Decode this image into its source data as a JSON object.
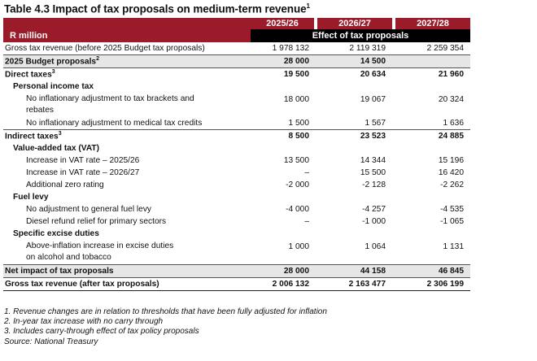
{
  "title": "Table 4.3 Impact of tax proposals on medium-term revenue",
  "title_sup": "1",
  "header": {
    "years": [
      "2025/26",
      "2026/27",
      "2027/28"
    ],
    "unit": "R million",
    "band": "Effect of tax proposals"
  },
  "rows": [
    {
      "label": "Gross tax revenue (before 2025 Budget tax proposals)",
      "v": [
        "1 978 132",
        "2 119 319",
        "2 259 354"
      ]
    },
    {
      "label": "2025 Budget proposals",
      "sup": "2",
      "v": [
        "28 000",
        "14 500",
        ""
      ]
    },
    {
      "label": "Direct taxes",
      "sup": "3",
      "v": [
        "19 500",
        "20 634",
        "21 960"
      ]
    },
    {
      "label": "Personal income tax",
      "v": [
        "",
        "",
        ""
      ]
    },
    {
      "label": "No inflationary adjustment to tax brackets and",
      "label2": "rebates",
      "v": [
        "18 000",
        "19 067",
        "20 324"
      ]
    },
    {
      "label": "No inflationary adjustment to medical tax credits",
      "v": [
        "1 500",
        "1 567",
        "1 636"
      ]
    },
    {
      "label": "Indirect taxes",
      "sup": "3",
      "v": [
        "8 500",
        "23 523",
        "24 885"
      ]
    },
    {
      "label": "Value-added tax (VAT)",
      "v": [
        "",
        "",
        ""
      ]
    },
    {
      "label": "Increase in VAT rate – 2025/26",
      "v": [
        "13 500",
        "14 344",
        "15 196"
      ]
    },
    {
      "label": "Increase in VAT rate – 2026/27",
      "v": [
        "–",
        "15 500",
        "16 420"
      ]
    },
    {
      "label": "Additional zero rating",
      "v": [
        "-2 000",
        "-2 128",
        "-2 262"
      ]
    },
    {
      "label": "Fuel levy",
      "v": [
        "",
        "",
        ""
      ]
    },
    {
      "label": "No adjustment to general fuel levy",
      "v": [
        "-4 000",
        "-4 257",
        "-4 535"
      ]
    },
    {
      "label": "Diesel refund relief for primary sectors",
      "v": [
        "–",
        "-1 000",
        "-1 065"
      ]
    },
    {
      "label": "Specific excise duties",
      "v": [
        "",
        "",
        ""
      ]
    },
    {
      "label": "Above-inflation increase in excise duties",
      "label2": "on alcohol and tobacco",
      "v": [
        "1 000",
        "1 064",
        "1 131"
      ]
    },
    {
      "label": "Net impact of tax proposals",
      "v": [
        "28 000",
        "44 158",
        "46 845"
      ]
    },
    {
      "label": "Gross tax revenue (after tax proposals)",
      "v": [
        "2 006 132",
        "2 163 477",
        "2 306 199"
      ]
    }
  ],
  "notes": [
    "1. Revenue changes are in relation to thresholds that have been fully adjusted for inflation",
    "2. In-year tax increase with no carry through",
    "3. Includes carry-through effect of tax policy proposals",
    "Source: National Treasury"
  ]
}
